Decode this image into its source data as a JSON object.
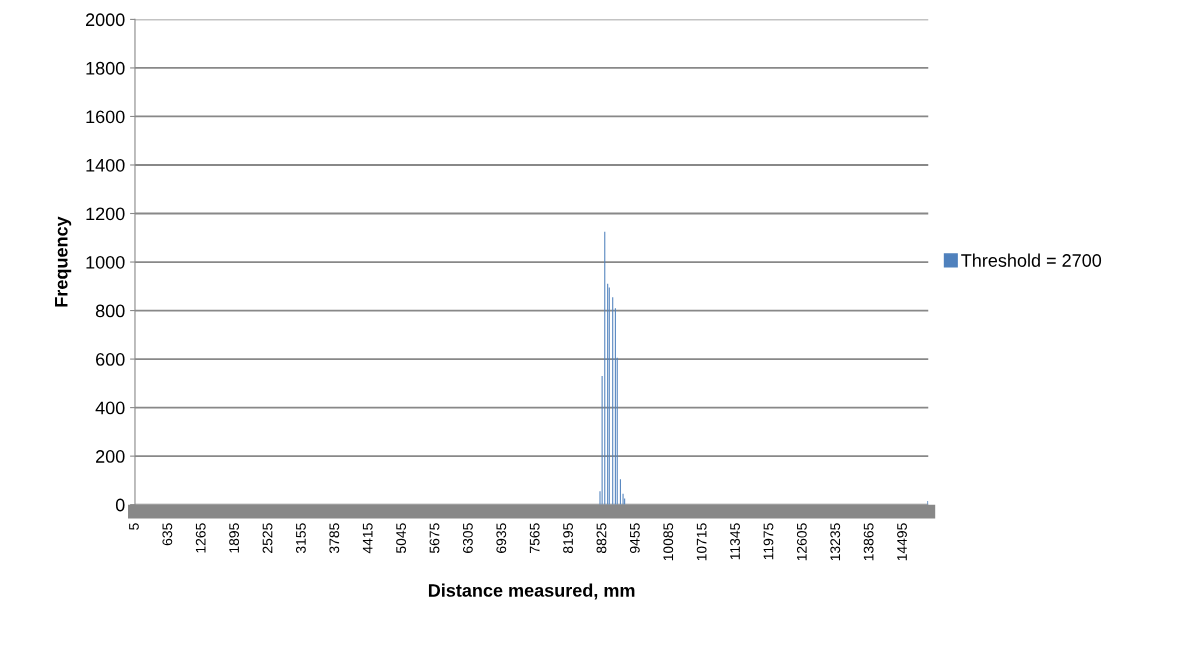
{
  "chart_data": {
    "type": "bar",
    "xlabel": "Distance measured, mm",
    "ylabel": "Frequency",
    "x": [
      8775,
      8815,
      8865,
      8920,
      8950,
      9015,
      9065,
      9100,
      9160,
      9210,
      9240,
      14960
    ],
    "series": [
      {
        "name": "Threshold = 2700",
        "color": "#4f81bd",
        "values": [
          55,
          530,
          1125,
          910,
          895,
          855,
          810,
          605,
          105,
          45,
          25,
          15
        ]
      }
    ],
    "xlim": [
      2.5,
      14967.5
    ],
    "xticks": [
      5,
      635,
      1265,
      1895,
      2525,
      3155,
      3785,
      4415,
      5045,
      5675,
      6305,
      6935,
      7565,
      8195,
      8825,
      9455,
      10085,
      10715,
      11345,
      11975,
      12605,
      13235,
      13865,
      14495
    ],
    "ylim": [
      0,
      2000
    ],
    "yticks": [
      0,
      200,
      400,
      600,
      800,
      1000,
      1200,
      1400,
      1600,
      1800,
      2000
    ],
    "grid": "y",
    "legend": "right"
  }
}
